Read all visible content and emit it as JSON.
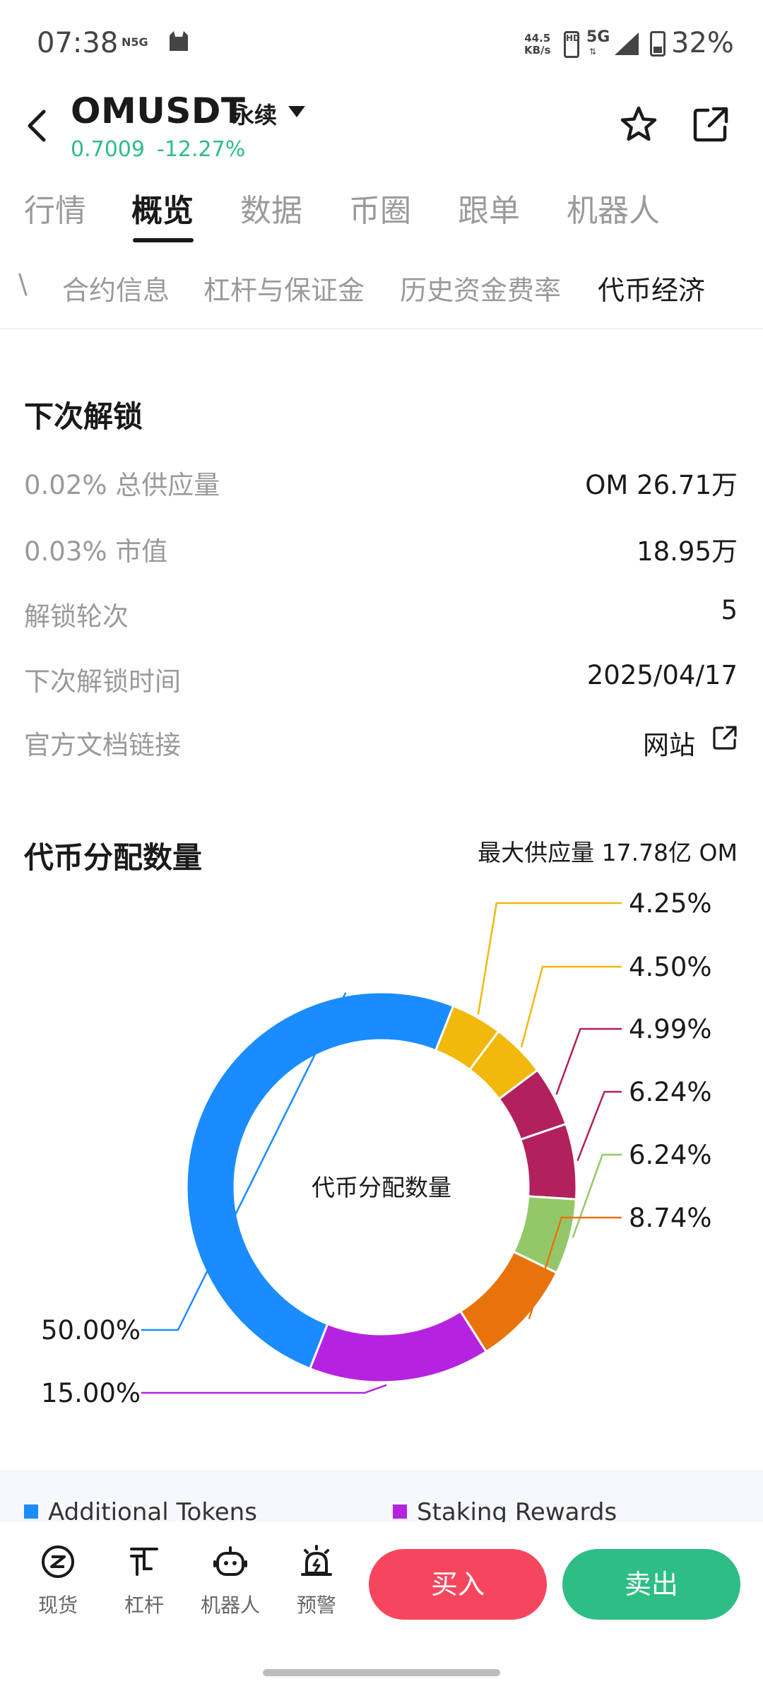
{
  "status_bar": {
    "time": "07:38",
    "network_label": "N5G",
    "speed_value": "44.5",
    "speed_unit": "KB/s",
    "hd_label": "HD",
    "network_type": "5G",
    "battery": "32%"
  },
  "header": {
    "pair": "OMUSDT",
    "contract_type": "永续",
    "price": "0.7009",
    "change": "-12.27%"
  },
  "main_tabs": [
    "行情",
    "概览",
    "数据",
    "币圈",
    "跟单",
    "机器人"
  ],
  "sub_tabs": {
    "cut_off": "\\",
    "items": [
      "合约信息",
      "杠杆与保证金",
      "历史资金费率",
      "代币经济"
    ]
  },
  "unlock": {
    "title": "下次解锁",
    "rows": [
      {
        "label": "0.02% 总供应量",
        "value": "OM 26.71万"
      },
      {
        "label": "0.03% 市值",
        "value": "18.95万"
      },
      {
        "label": "解锁轮次",
        "value": "5"
      },
      {
        "label": "下次解锁时间",
        "value": "2025/04/17"
      },
      {
        "label": "官方文档链接",
        "value": "网站"
      }
    ]
  },
  "distribution": {
    "title": "代币分配数量",
    "max_supply": "最大供应量 17.78亿 OM"
  },
  "chart_data": {
    "type": "pie",
    "center_label": "代币分配数量",
    "slices": [
      {
        "name": "Additional Tokens",
        "value": 50.0,
        "label": "50.00%",
        "color": "#1a8cff"
      },
      {
        "name": "Staking Rewards",
        "value": 15.0,
        "label": "15.00%",
        "color": "#b623e0"
      },
      {
        "name": "",
        "value": 8.74,
        "label": "8.74%",
        "color": "#e8730c"
      },
      {
        "name": "",
        "value": 6.24,
        "label": "6.24%",
        "color": "#93c869"
      },
      {
        "name": "",
        "value": 6.24,
        "label": "6.24%",
        "color": "#b2205e"
      },
      {
        "name": "",
        "value": 4.99,
        "label": "4.99%",
        "color": "#b2205e"
      },
      {
        "name": "",
        "value": 4.5,
        "label": "4.50%",
        "color": "#f0b90b"
      },
      {
        "name": "",
        "value": 4.25,
        "label": "4.25%",
        "color": "#f0b90b"
      }
    ]
  },
  "legend": [
    {
      "label": "Additional Tokens",
      "color": "#1a8cff"
    },
    {
      "label": "Staking Rewards",
      "color": "#b623e0"
    }
  ],
  "bottom_nav": [
    {
      "label": "现货",
      "icon": "spot-icon"
    },
    {
      "label": "杠杆",
      "icon": "margin-icon"
    },
    {
      "label": "机器人",
      "icon": "robot-icon"
    },
    {
      "label": "预警",
      "icon": "alarm-icon"
    }
  ],
  "actions": {
    "buy": "买入",
    "sell": "卖出"
  }
}
